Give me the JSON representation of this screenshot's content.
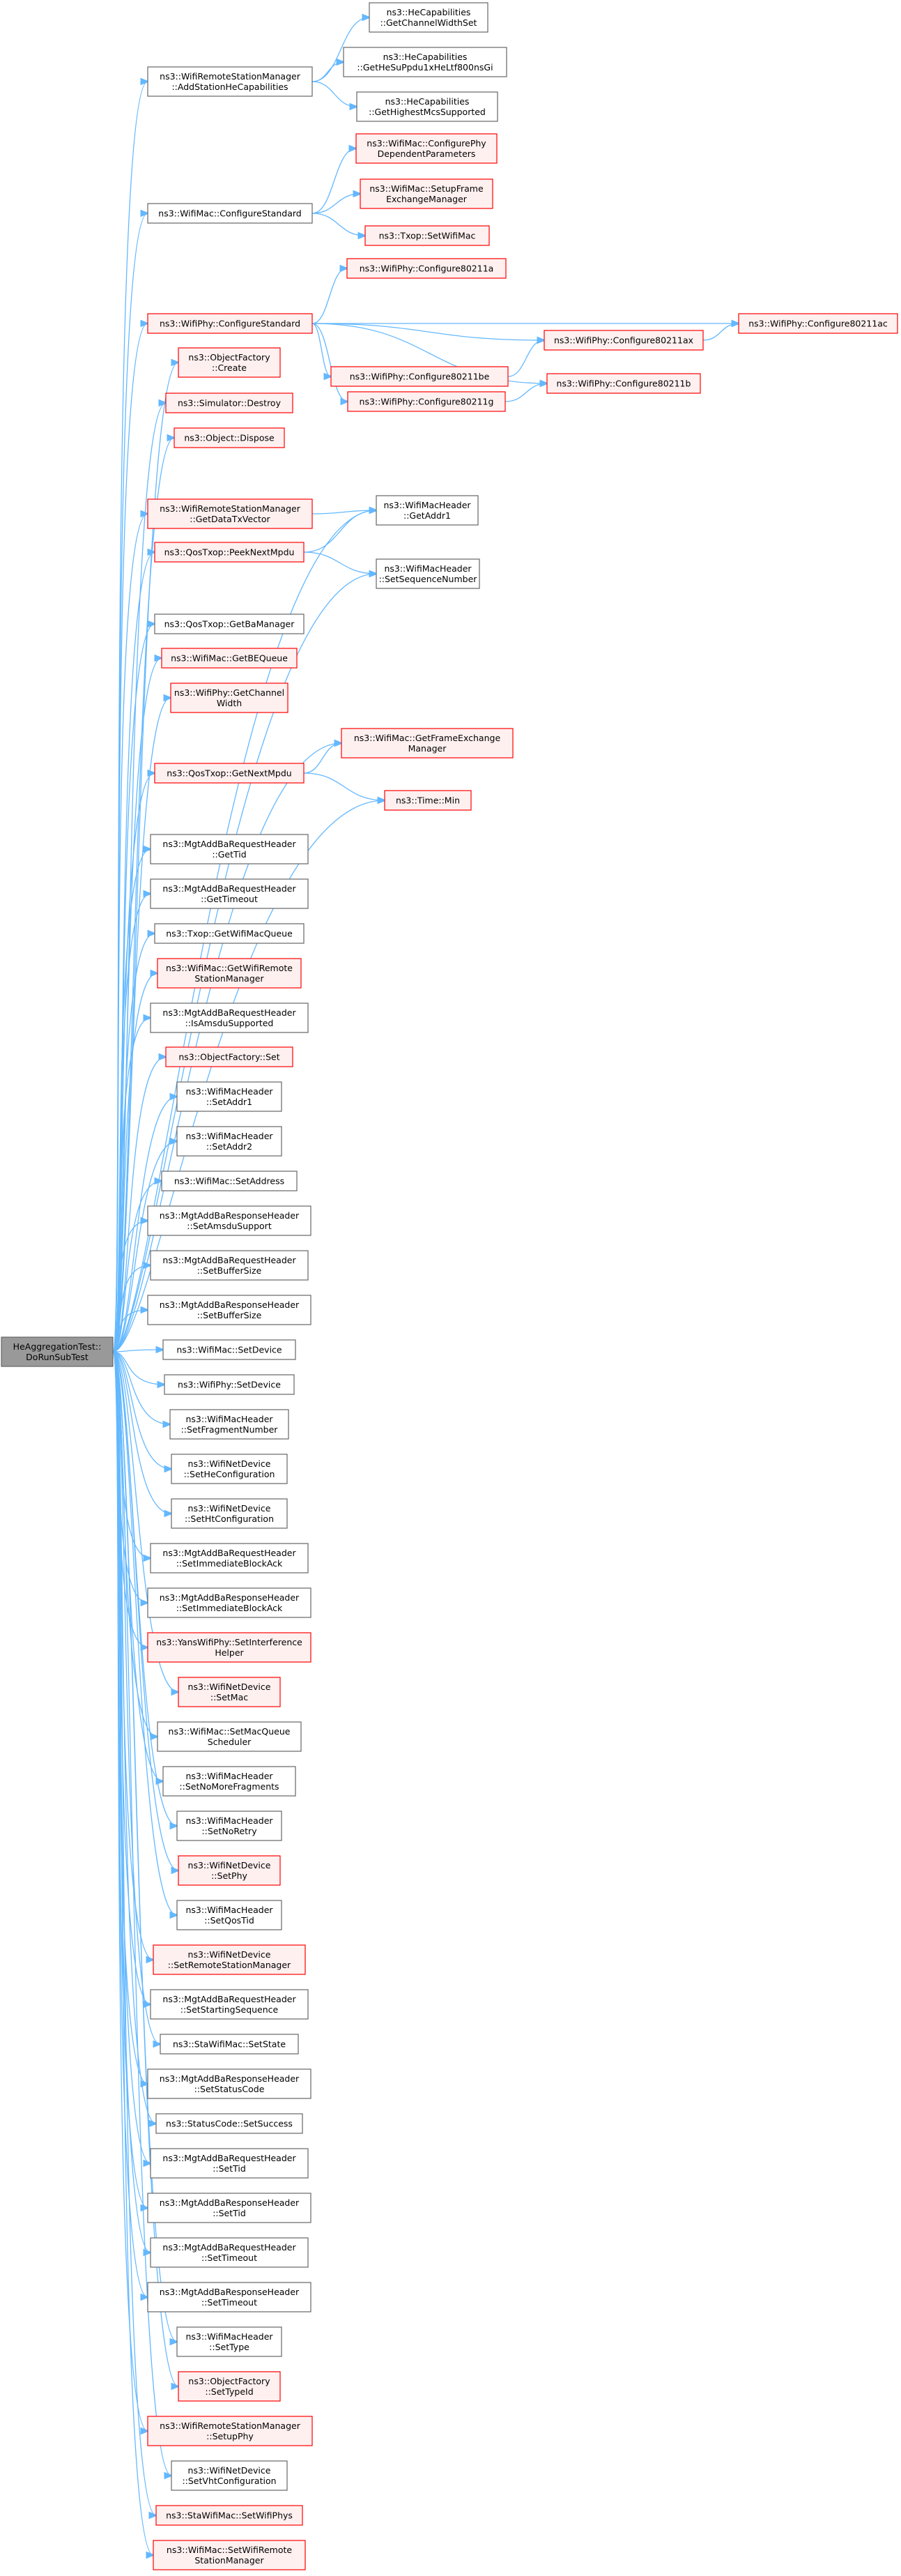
{
  "colors": {
    "edge": "#63b8ff",
    "root_fill": "#999999",
    "root_border": "#666666",
    "plain_fill": "#ffffff",
    "plain_border": "#666666",
    "red_fill": "#fff0f0",
    "red_border": "#ff0000"
  },
  "root": {
    "id": "root",
    "lines": [
      "HeAggregationTest::",
      "DoRunSubTest"
    ]
  },
  "nodes": [
    {
      "id": "n1",
      "style": "plain",
      "lines": [
        "ns3::WifiRemoteStationManager",
        "::AddStationHeCapabilities"
      ]
    },
    {
      "id": "n2",
      "style": "plain",
      "lines": [
        "ns3::HeCapabilities",
        "::GetChannelWidthSet"
      ]
    },
    {
      "id": "n3",
      "style": "plain",
      "lines": [
        "ns3::HeCapabilities",
        "::GetHeSuPpdu1xHeLtf800nsGi"
      ]
    },
    {
      "id": "n4",
      "style": "plain",
      "lines": [
        "ns3::HeCapabilities",
        "::GetHighestMcsSupported"
      ]
    },
    {
      "id": "n5",
      "style": "plain",
      "lines": [
        "ns3::WifiMac::ConfigureStandard"
      ]
    },
    {
      "id": "n6",
      "style": "red",
      "lines": [
        "ns3::WifiMac::ConfigurePhy",
        "DependentParameters"
      ]
    },
    {
      "id": "n7",
      "style": "red",
      "lines": [
        "ns3::WifiMac::SetupFrame",
        "ExchangeManager"
      ]
    },
    {
      "id": "n8",
      "style": "red",
      "lines": [
        "ns3::Txop::SetWifiMac"
      ]
    },
    {
      "id": "n9",
      "style": "red",
      "lines": [
        "ns3::WifiPhy::Configure80211a"
      ]
    },
    {
      "id": "n10",
      "style": "red",
      "lines": [
        "ns3::WifiPhy::ConfigureStandard"
      ]
    },
    {
      "id": "n11",
      "style": "red",
      "lines": [
        "ns3::WifiPhy::Configure80211ac"
      ]
    },
    {
      "id": "n12",
      "style": "red",
      "lines": [
        "ns3::WifiPhy::Configure80211ax"
      ]
    },
    {
      "id": "n13",
      "style": "red",
      "lines": [
        "ns3::WifiPhy::Configure80211be"
      ]
    },
    {
      "id": "n14",
      "style": "red",
      "lines": [
        "ns3::WifiPhy::Configure80211b"
      ]
    },
    {
      "id": "n15",
      "style": "red",
      "lines": [
        "ns3::WifiPhy::Configure80211g"
      ]
    },
    {
      "id": "n16",
      "style": "red",
      "lines": [
        "ns3::ObjectFactory",
        "::Create"
      ]
    },
    {
      "id": "n17",
      "style": "red",
      "lines": [
        "ns3::Simulator::Destroy"
      ]
    },
    {
      "id": "n18",
      "style": "red",
      "lines": [
        "ns3::Object::Dispose"
      ]
    },
    {
      "id": "n19",
      "style": "plain",
      "lines": [
        "ns3::WifiMacHeader",
        "::GetAddr1"
      ]
    },
    {
      "id": "n20",
      "style": "red",
      "lines": [
        "ns3::WifiRemoteStationManager",
        "::GetDataTxVector"
      ]
    },
    {
      "id": "n21",
      "style": "red",
      "lines": [
        "ns3::QosTxop::PeekNextMpdu"
      ]
    },
    {
      "id": "n22",
      "style": "plain",
      "lines": [
        "ns3::WifiMacHeader",
        "::SetSequenceNumber"
      ]
    },
    {
      "id": "n23",
      "style": "plain",
      "lines": [
        "ns3::QosTxop::GetBaManager"
      ]
    },
    {
      "id": "n24",
      "style": "red",
      "lines": [
        "ns3::WifiMac::GetBEQueue"
      ]
    },
    {
      "id": "n25",
      "style": "red",
      "lines": [
        "ns3::WifiPhy::GetChannel",
        "Width"
      ]
    },
    {
      "id": "n26",
      "style": "red",
      "lines": [
        "ns3::WifiMac::GetFrameExchange",
        "Manager"
      ]
    },
    {
      "id": "n27",
      "style": "red",
      "lines": [
        "ns3::QosTxop::GetNextMpdu"
      ]
    },
    {
      "id": "n28",
      "style": "red",
      "lines": [
        "ns3::Time::Min"
      ]
    },
    {
      "id": "n29",
      "style": "plain",
      "lines": [
        "ns3::MgtAddBaRequestHeader",
        "::GetTid"
      ]
    },
    {
      "id": "n30",
      "style": "plain",
      "lines": [
        "ns3::MgtAddBaRequestHeader",
        "::GetTimeout"
      ]
    },
    {
      "id": "n31",
      "style": "plain",
      "lines": [
        "ns3::Txop::GetWifiMacQueue"
      ]
    },
    {
      "id": "n32",
      "style": "red",
      "lines": [
        "ns3::WifiMac::GetWifiRemote",
        "StationManager"
      ]
    },
    {
      "id": "n33",
      "style": "plain",
      "lines": [
        "ns3::MgtAddBaRequestHeader",
        "::IsAmsduSupported"
      ]
    },
    {
      "id": "n34",
      "style": "red",
      "lines": [
        "ns3::ObjectFactory::Set"
      ]
    },
    {
      "id": "n35",
      "style": "plain",
      "lines": [
        "ns3::WifiMacHeader",
        "::SetAddr1"
      ]
    },
    {
      "id": "n36",
      "style": "plain",
      "lines": [
        "ns3::WifiMacHeader",
        "::SetAddr2"
      ]
    },
    {
      "id": "n37",
      "style": "plain",
      "lines": [
        "ns3::WifiMac::SetAddress"
      ]
    },
    {
      "id": "n38",
      "style": "plain",
      "lines": [
        "ns3::MgtAddBaResponseHeader",
        "::SetAmsduSupport"
      ]
    },
    {
      "id": "n39",
      "style": "plain",
      "lines": [
        "ns3::MgtAddBaRequestHeader",
        "::SetBufferSize"
      ]
    },
    {
      "id": "n40",
      "style": "plain",
      "lines": [
        "ns3::MgtAddBaResponseHeader",
        "::SetBufferSize"
      ]
    },
    {
      "id": "n41",
      "style": "plain",
      "lines": [
        "ns3::WifiMac::SetDevice"
      ]
    },
    {
      "id": "n42",
      "style": "plain",
      "lines": [
        "ns3::WifiPhy::SetDevice"
      ]
    },
    {
      "id": "n43",
      "style": "plain",
      "lines": [
        "ns3::WifiMacHeader",
        "::SetFragmentNumber"
      ]
    },
    {
      "id": "n44",
      "style": "plain",
      "lines": [
        "ns3::WifiNetDevice",
        "::SetHeConfiguration"
      ]
    },
    {
      "id": "n45",
      "style": "plain",
      "lines": [
        "ns3::WifiNetDevice",
        "::SetHtConfiguration"
      ]
    },
    {
      "id": "n46",
      "style": "plain",
      "lines": [
        "ns3::MgtAddBaRequestHeader",
        "::SetImmediateBlockAck"
      ]
    },
    {
      "id": "n47",
      "style": "plain",
      "lines": [
        "ns3::MgtAddBaResponseHeader",
        "::SetImmediateBlockAck"
      ]
    },
    {
      "id": "n48",
      "style": "red",
      "lines": [
        "ns3::YansWifiPhy::SetInterference",
        "Helper"
      ]
    },
    {
      "id": "n49",
      "style": "red",
      "lines": [
        "ns3::WifiNetDevice",
        "::SetMac"
      ]
    },
    {
      "id": "n50",
      "style": "plain",
      "lines": [
        "ns3::WifiMac::SetMacQueue",
        "Scheduler"
      ]
    },
    {
      "id": "n51",
      "style": "plain",
      "lines": [
        "ns3::WifiMacHeader",
        "::SetNoMoreFragments"
      ]
    },
    {
      "id": "n52",
      "style": "plain",
      "lines": [
        "ns3::WifiMacHeader",
        "::SetNoRetry"
      ]
    },
    {
      "id": "n53",
      "style": "red",
      "lines": [
        "ns3::WifiNetDevice",
        "::SetPhy"
      ]
    },
    {
      "id": "n54",
      "style": "plain",
      "lines": [
        "ns3::WifiMacHeader",
        "::SetQosTid"
      ]
    },
    {
      "id": "n55",
      "style": "red",
      "lines": [
        "ns3::WifiNetDevice",
        "::SetRemoteStationManager"
      ]
    },
    {
      "id": "n56",
      "style": "plain",
      "lines": [
        "ns3::MgtAddBaRequestHeader",
        "::SetStartingSequence"
      ]
    },
    {
      "id": "n57",
      "style": "plain",
      "lines": [
        "ns3::StaWifiMac::SetState"
      ]
    },
    {
      "id": "n58",
      "style": "plain",
      "lines": [
        "ns3::MgtAddBaResponseHeader",
        "::SetStatusCode"
      ]
    },
    {
      "id": "n59",
      "style": "plain",
      "lines": [
        "ns3::StatusCode::SetSuccess"
      ]
    },
    {
      "id": "n60",
      "style": "plain",
      "lines": [
        "ns3::MgtAddBaRequestHeader",
        "::SetTid"
      ]
    },
    {
      "id": "n61",
      "style": "plain",
      "lines": [
        "ns3::MgtAddBaResponseHeader",
        "::SetTid"
      ]
    },
    {
      "id": "n62",
      "style": "plain",
      "lines": [
        "ns3::MgtAddBaRequestHeader",
        "::SetTimeout"
      ]
    },
    {
      "id": "n63",
      "style": "plain",
      "lines": [
        "ns3::MgtAddBaResponseHeader",
        "::SetTimeout"
      ]
    },
    {
      "id": "n64",
      "style": "plain",
      "lines": [
        "ns3::WifiMacHeader",
        "::SetType"
      ]
    },
    {
      "id": "n65",
      "style": "red",
      "lines": [
        "ns3::ObjectFactory",
        "::SetTypeId"
      ]
    },
    {
      "id": "n66",
      "style": "red",
      "lines": [
        "ns3::WifiRemoteStationManager",
        "::SetupPhy"
      ]
    },
    {
      "id": "n67",
      "style": "plain",
      "lines": [
        "ns3::WifiNetDevice",
        "::SetVhtConfiguration"
      ]
    },
    {
      "id": "n68",
      "style": "red",
      "lines": [
        "ns3::StaWifiMac::SetWifiPhys"
      ]
    },
    {
      "id": "n69",
      "style": "red",
      "lines": [
        "ns3::WifiMac::SetWifiRemote",
        "StationManager"
      ]
    }
  ],
  "edges": [
    [
      "root",
      "n1"
    ],
    [
      "root",
      "n5"
    ],
    [
      "root",
      "n10"
    ],
    [
      "root",
      "n16"
    ],
    [
      "root",
      "n17"
    ],
    [
      "root",
      "n18"
    ],
    [
      "root",
      "n19"
    ],
    [
      "root",
      "n20"
    ],
    [
      "root",
      "n21"
    ],
    [
      "root",
      "n22"
    ],
    [
      "root",
      "n23"
    ],
    [
      "root",
      "n24"
    ],
    [
      "root",
      "n25"
    ],
    [
      "root",
      "n26"
    ],
    [
      "root",
      "n27"
    ],
    [
      "root",
      "n28"
    ],
    [
      "root",
      "n29"
    ],
    [
      "root",
      "n30"
    ],
    [
      "root",
      "n31"
    ],
    [
      "root",
      "n32"
    ],
    [
      "root",
      "n33"
    ],
    [
      "root",
      "n34"
    ],
    [
      "root",
      "n35"
    ],
    [
      "root",
      "n36"
    ],
    [
      "root",
      "n37"
    ],
    [
      "root",
      "n38"
    ],
    [
      "root",
      "n39"
    ],
    [
      "root",
      "n40"
    ],
    [
      "root",
      "n41"
    ],
    [
      "root",
      "n42"
    ],
    [
      "root",
      "n43"
    ],
    [
      "root",
      "n44"
    ],
    [
      "root",
      "n45"
    ],
    [
      "root",
      "n46"
    ],
    [
      "root",
      "n47"
    ],
    [
      "root",
      "n48"
    ],
    [
      "root",
      "n49"
    ],
    [
      "root",
      "n50"
    ],
    [
      "root",
      "n51"
    ],
    [
      "root",
      "n52"
    ],
    [
      "root",
      "n53"
    ],
    [
      "root",
      "n54"
    ],
    [
      "root",
      "n55"
    ],
    [
      "root",
      "n56"
    ],
    [
      "root",
      "n57"
    ],
    [
      "root",
      "n58"
    ],
    [
      "root",
      "n59"
    ],
    [
      "root",
      "n60"
    ],
    [
      "root",
      "n61"
    ],
    [
      "root",
      "n62"
    ],
    [
      "root",
      "n63"
    ],
    [
      "root",
      "n64"
    ],
    [
      "root",
      "n65"
    ],
    [
      "root",
      "n66"
    ],
    [
      "root",
      "n67"
    ],
    [
      "root",
      "n68"
    ],
    [
      "root",
      "n69"
    ],
    [
      "n1",
      "n2"
    ],
    [
      "n1",
      "n3"
    ],
    [
      "n1",
      "n4"
    ],
    [
      "n5",
      "n6"
    ],
    [
      "n5",
      "n7"
    ],
    [
      "n5",
      "n8"
    ],
    [
      "n10",
      "n9"
    ],
    [
      "n10",
      "n11"
    ],
    [
      "n10",
      "n12"
    ],
    [
      "n10",
      "n13"
    ],
    [
      "n10",
      "n14"
    ],
    [
      "n10",
      "n15"
    ],
    [
      "n12",
      "n11"
    ],
    [
      "n13",
      "n12"
    ],
    [
      "n15",
      "n14"
    ],
    [
      "n20",
      "n19"
    ],
    [
      "n21",
      "n19"
    ],
    [
      "n21",
      "n22"
    ],
    [
      "n27",
      "n26"
    ],
    [
      "n27",
      "n28"
    ]
  ]
}
